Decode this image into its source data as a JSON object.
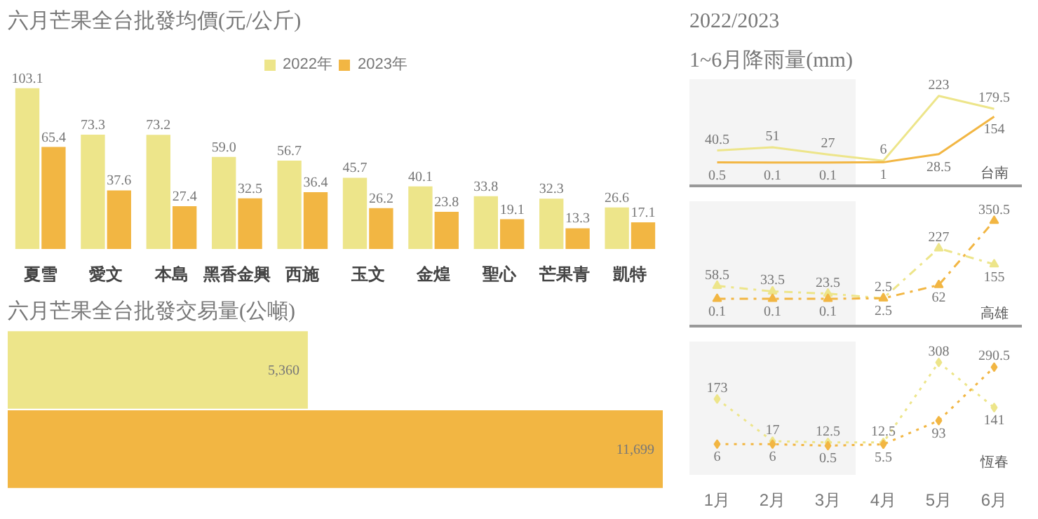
{
  "chart_data": [
    {
      "type": "bar",
      "title": "六月芒果全台批發均價(元/公斤)",
      "categories": [
        "夏雪",
        "愛文",
        "本島",
        "黑香金興",
        "西施",
        "玉文",
        "金煌",
        "聖心",
        "芒果青",
        "凱特"
      ],
      "series": [
        {
          "name": "2022年",
          "color": "#ede58a",
          "values": [
            103.1,
            73.3,
            73.2,
            59.0,
            56.7,
            45.7,
            40.1,
            33.8,
            32.3,
            26.6
          ],
          "value_labels": [
            "103.1",
            "73.3",
            "73.2",
            "59.0",
            "56.7",
            "45.7",
            "40.1",
            "33.8",
            "32.3",
            "26.6"
          ]
        },
        {
          "name": "2023年",
          "color": "#f2b643",
          "values": [
            65.4,
            37.6,
            27.4,
            32.5,
            36.4,
            26.2,
            23.8,
            19.1,
            13.3,
            17.1
          ],
          "value_labels": [
            "65.4",
            "37.6",
            "27.4",
            "32.5",
            "36.4",
            "26.2",
            "23.8",
            "19.1",
            "13.3",
            "17.1"
          ]
        }
      ],
      "legend": "top",
      "grid": false
    },
    {
      "type": "line",
      "title": "2022/2023",
      "subtitle": "1~6月降雨量(mm)",
      "annotations": [
        "台南"
      ],
      "categories": [
        "1月",
        "2月",
        "3月",
        "4月",
        "5月",
        "6月"
      ],
      "series": [
        {
          "color": "#ede58a",
          "values": [
            40.5,
            51,
            27,
            6,
            223,
            179.5
          ]
        },
        {
          "color": "#f2b643",
          "values": [
            0.5,
            0.1,
            0.1,
            1,
            28.5,
            154
          ]
        }
      ],
      "data_labels": true,
      "line_style": "solid",
      "marker": "none",
      "tick_labels": false,
      "grid": false,
      "bands": [
        {
          "axis": "x",
          "from": "1月",
          "to": "3月",
          "color": "#f4f4f4"
        }
      ]
    },
    {
      "type": "line",
      "annotations": [
        "高雄"
      ],
      "categories": [
        "1月",
        "2月",
        "3月",
        "4月",
        "5月",
        "6月"
      ],
      "series": [
        {
          "color": "#ede58a",
          "values": [
            58.5,
            33.5,
            23.5,
            2.5,
            227,
            155
          ]
        },
        {
          "color": "#f2b643",
          "values": [
            0.1,
            0.1,
            0.1,
            2.5,
            62,
            350.5
          ]
        }
      ],
      "data_labels": true,
      "line_style": "dashed",
      "marker": "triangle",
      "tick_labels": false,
      "grid": false,
      "bands": [
        {
          "axis": "x",
          "from": "1月",
          "to": "3月",
          "color": "#f4f4f4"
        }
      ]
    },
    {
      "type": "line",
      "annotations": [
        "恆春"
      ],
      "categories": [
        "1月",
        "2月",
        "3月",
        "4月",
        "5月",
        "6月"
      ],
      "series": [
        {
          "color": "#ede58a",
          "values": [
            173,
            17,
            12.5,
            12.5,
            308,
            141
          ]
        },
        {
          "color": "#f2b643",
          "values": [
            6,
            6,
            0.5,
            5.5,
            93,
            290.5
          ]
        }
      ],
      "data_labels": true,
      "line_style": "dotted",
      "marker": "diamond",
      "tick_labels": "x",
      "grid": false,
      "bands": [
        {
          "axis": "x",
          "from": "1月",
          "to": "3月",
          "color": "#f4f4f4"
        }
      ]
    },
    {
      "type": "bar",
      "orientation": "horizontal",
      "title": "六月芒果全台批發交易量(公噸)",
      "categories": [
        null,
        null
      ],
      "values": [
        5360,
        11699
      ],
      "colors": [
        "#ede58a",
        "#f2b643"
      ],
      "value_labels": [
        "5,360",
        "11,699"
      ]
    }
  ]
}
